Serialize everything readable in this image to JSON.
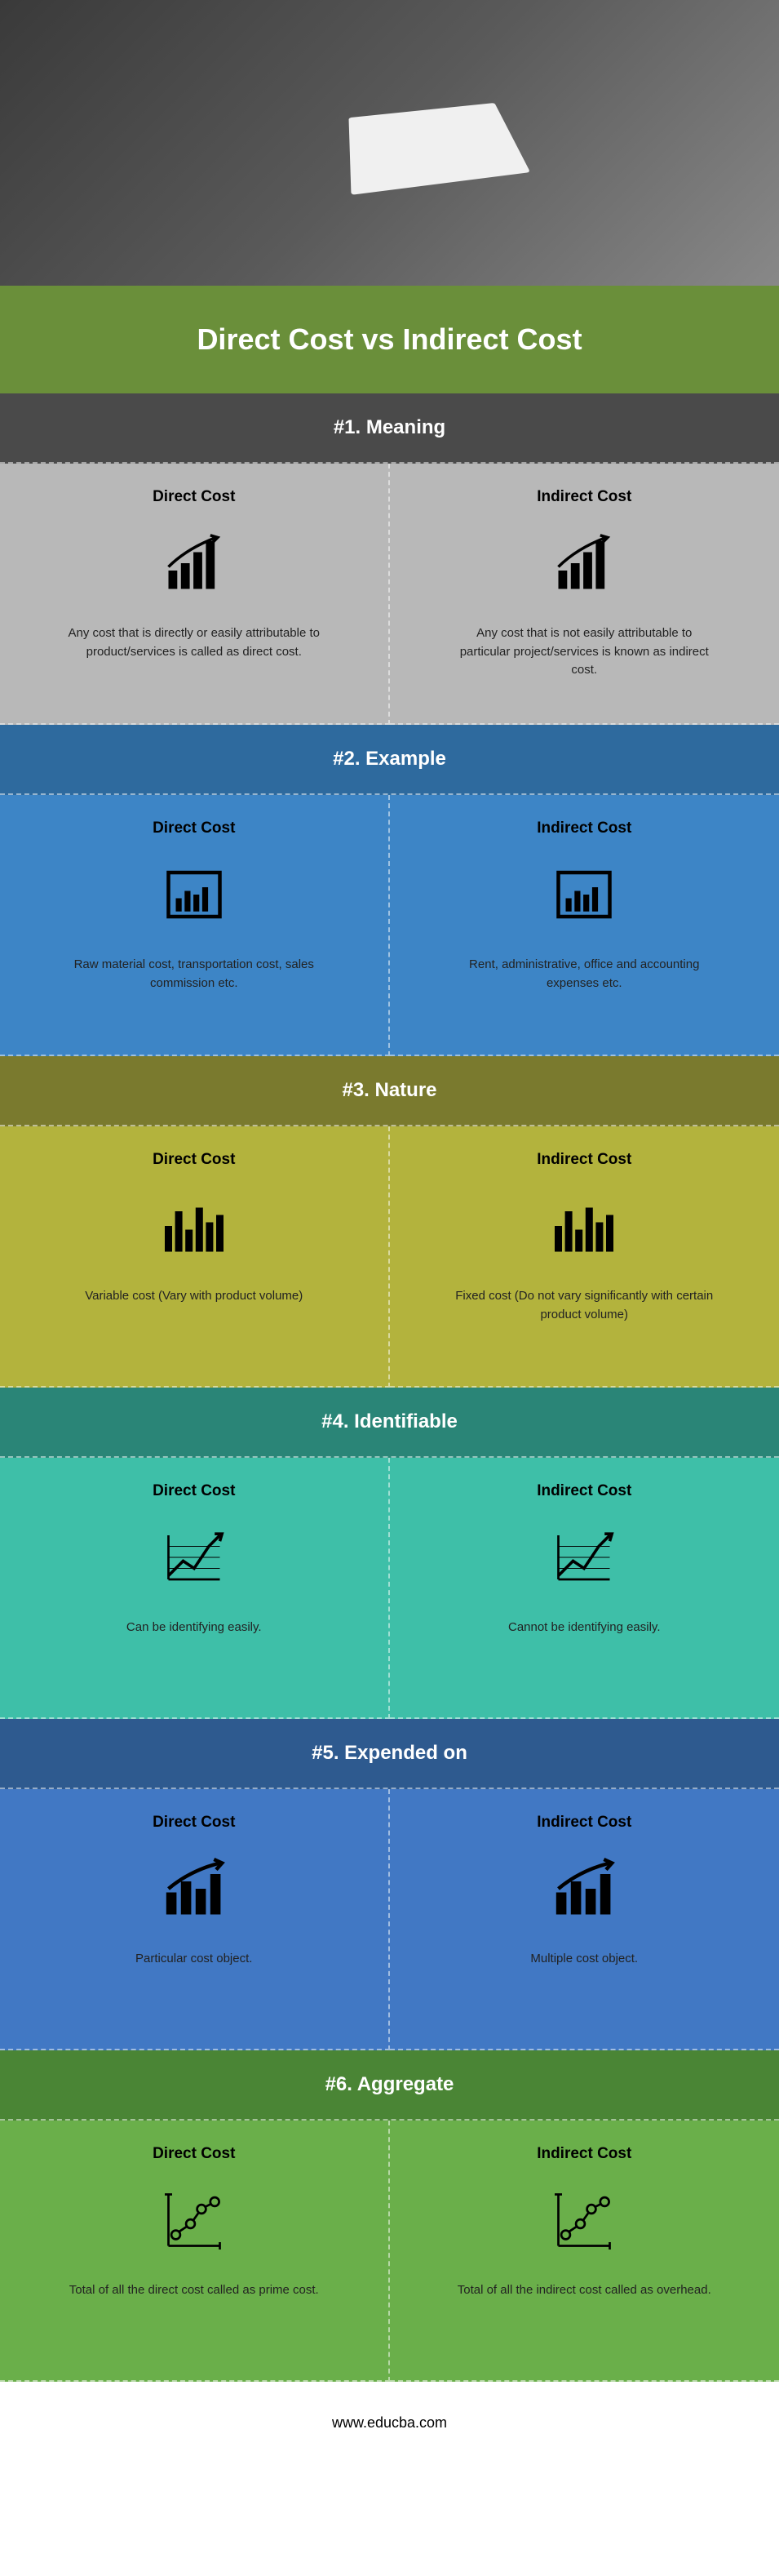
{
  "title": "Direct Cost vs Indirect Cost",
  "colors": {
    "title_bg": "#6a8f3a",
    "section1_header": "#4a4a4a",
    "section1_body": "#b8b8b8",
    "section2_header": "#2e6a9e",
    "section2_body": "#3d85c6",
    "section3_header": "#7a7a2e",
    "section3_body": "#b3b33d",
    "section4_header": "#2a8577",
    "section4_body": "#3ebfa8",
    "section5_header": "#2e5a8f",
    "section5_body": "#4178c4",
    "section6_header": "#4a8535",
    "section6_body": "#6aaf4a"
  },
  "sections": [
    {
      "header": "#1. Meaning",
      "left_title": "Direct Cost",
      "right_title": "Indirect Cost",
      "left_text": "Any cost that is directly or easily attributable to product/services is called as direct cost.",
      "right_text": "Any cost that is not easily attributable to particular project/services is known as indirect cost.",
      "icon": "growth-bars"
    },
    {
      "header": "#2. Example",
      "left_title": "Direct Cost",
      "right_title": "Indirect Cost",
      "left_text": "Raw material cost, transportation cost, sales commission etc.",
      "right_text": "Rent, administrative, office and accounting expenses etc.",
      "icon": "bar-chart-box"
    },
    {
      "header": "#3. Nature",
      "left_title": "Direct Cost",
      "right_title": "Indirect Cost",
      "left_text": "Variable cost (Vary with product volume)",
      "right_text": "Fixed cost (Do not vary significantly with certain product volume)",
      "icon": "bars-varying"
    },
    {
      "header": "#4. Identifiable",
      "left_title": "Direct Cost",
      "right_title": "Indirect Cost",
      "left_text": "Can be identifying easily.",
      "right_text": "Cannot be identifying easily.",
      "icon": "line-arrow"
    },
    {
      "header": "#5. Expended on",
      "left_title": "Direct Cost",
      "right_title": "Indirect Cost",
      "left_text": "Particular cost object.",
      "right_text": "Multiple cost object.",
      "icon": "bars-arrow"
    },
    {
      "header": "#6. Aggregate",
      "left_title": "Direct Cost",
      "right_title": "Indirect Cost",
      "left_text": "Total of all the direct cost called as prime cost.",
      "right_text": "Total of all the indirect cost called as overhead.",
      "icon": "line-points"
    }
  ],
  "footer": "www.educba.com"
}
